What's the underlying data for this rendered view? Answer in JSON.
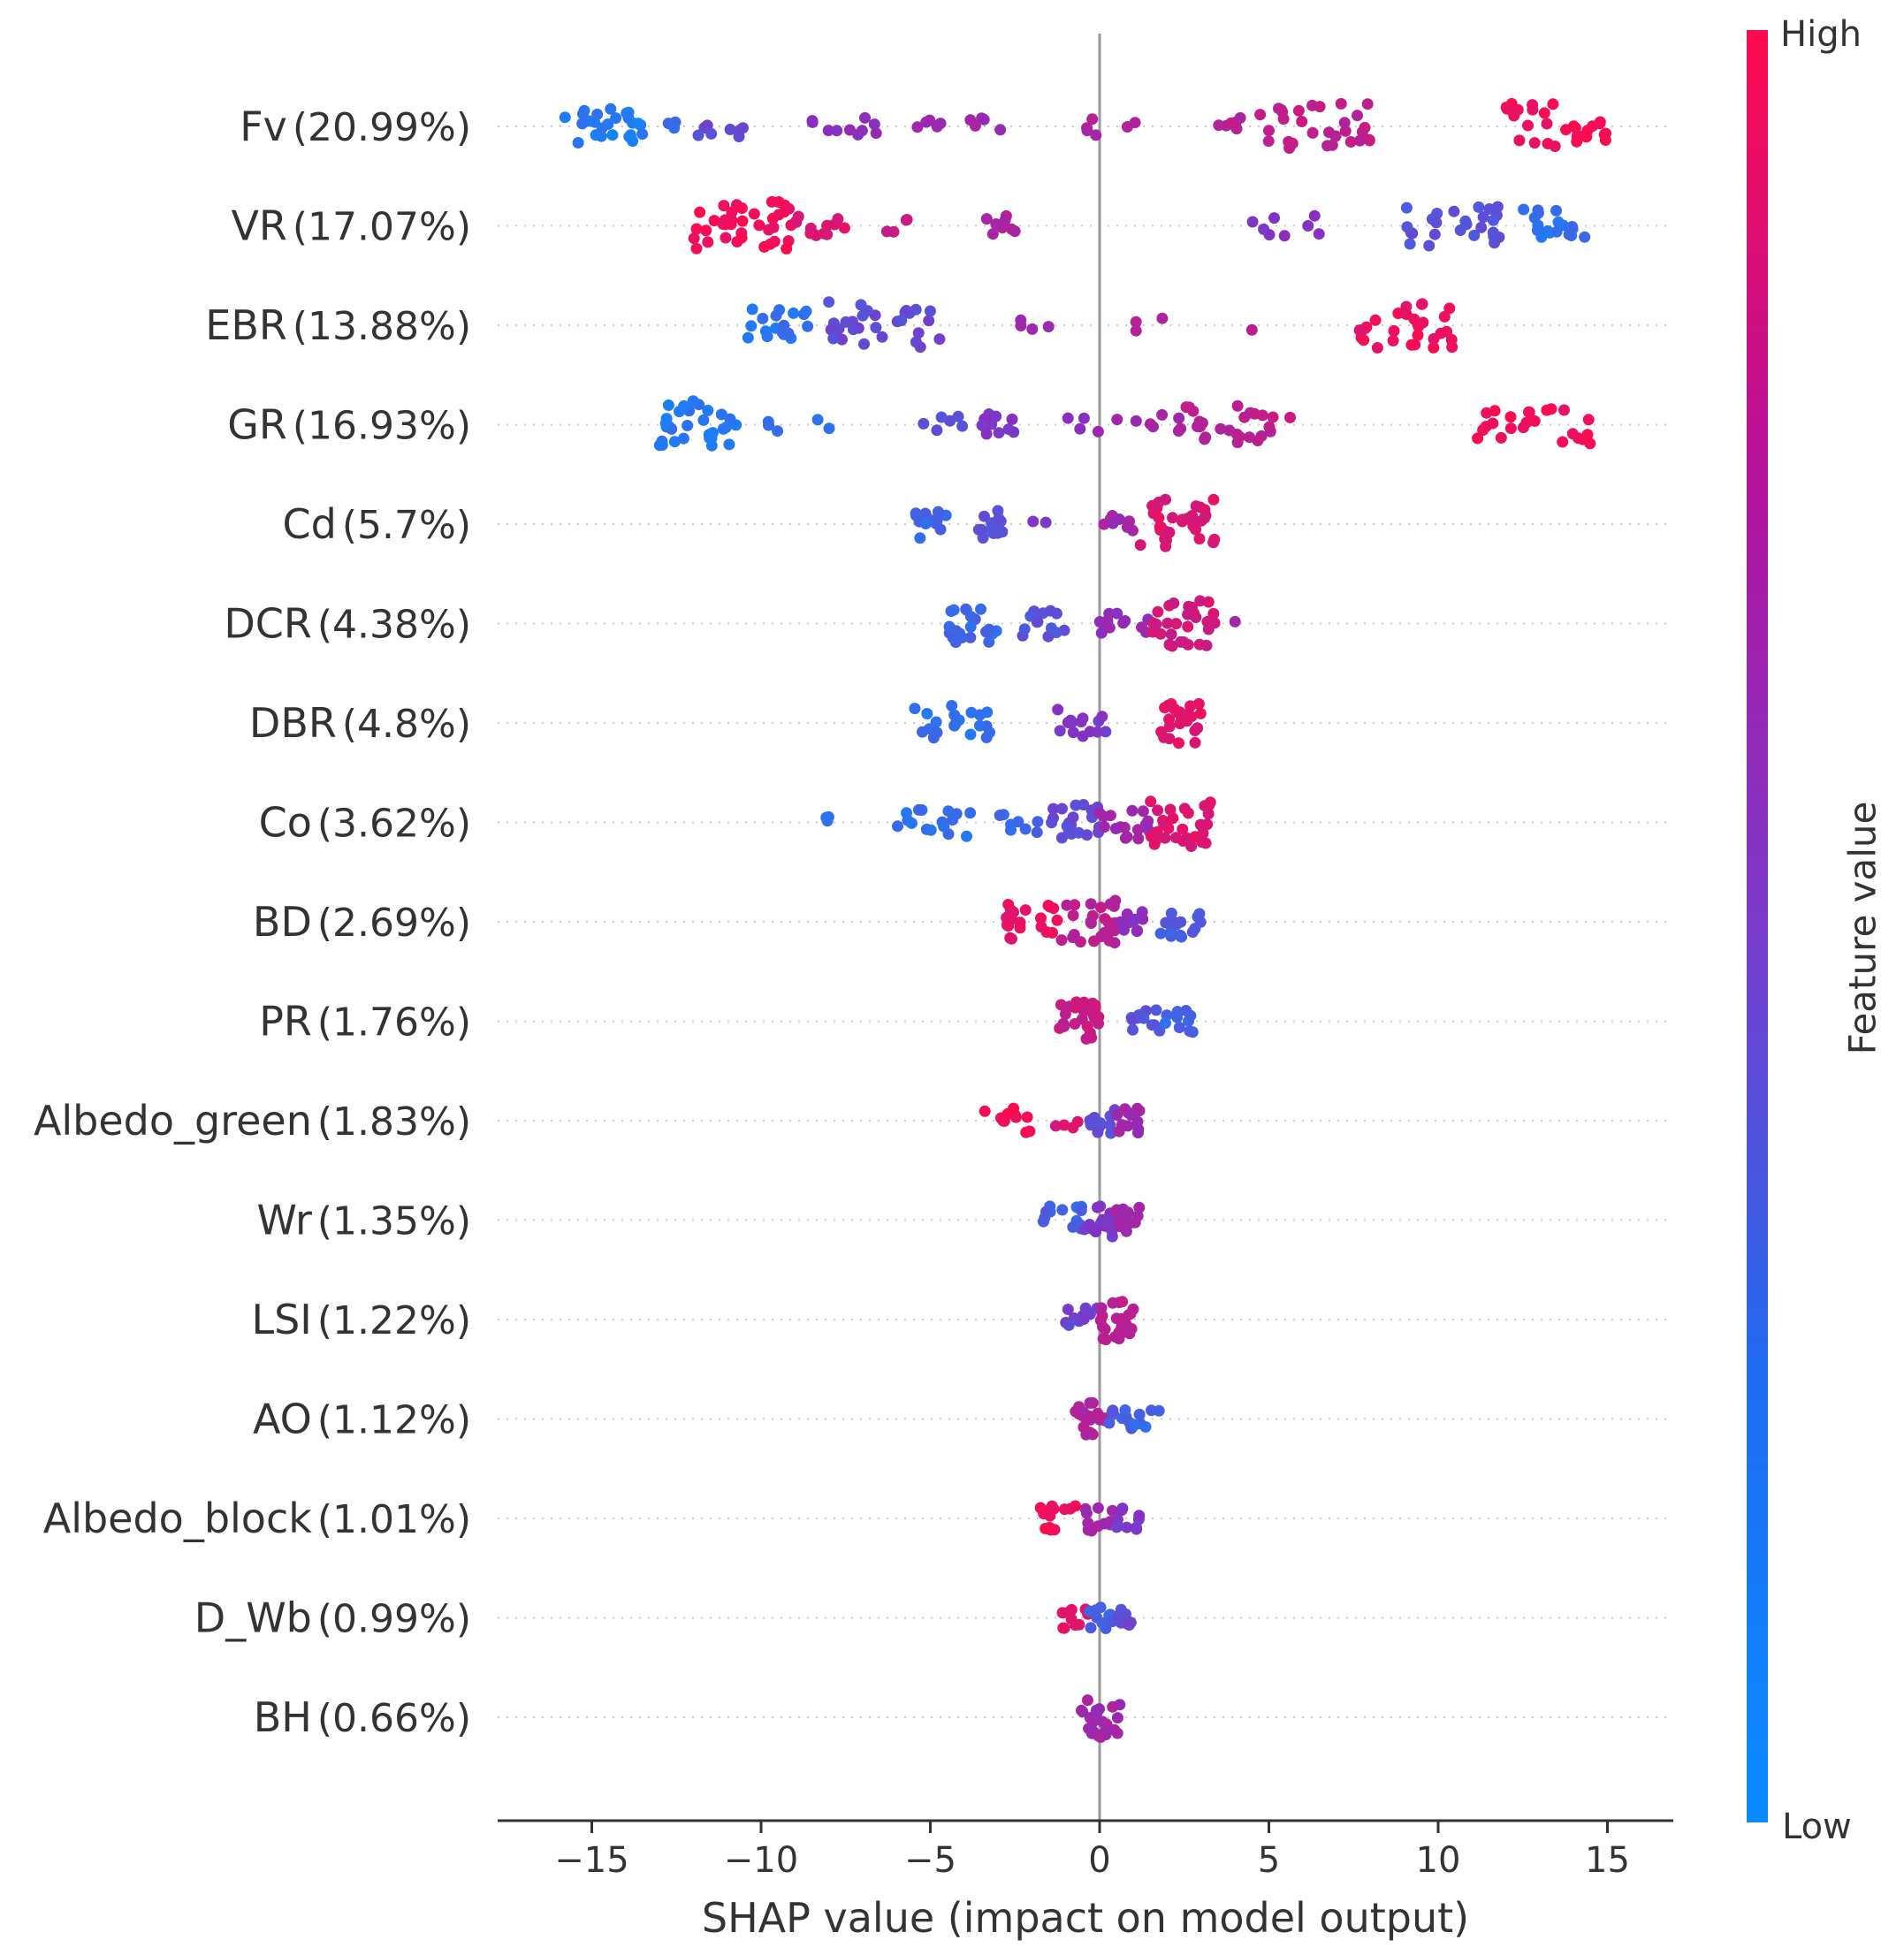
{
  "chart_data": {
    "type": "scatter",
    "subtype": "shap-beeswarm",
    "title": "",
    "xlabel": "SHAP value (impact on model output)",
    "ylabel": "",
    "xlim": [
      -18,
      17
    ],
    "x_ticks": [
      -15,
      -10,
      -5,
      0,
      5,
      10,
      15
    ],
    "x_tick_labels": [
      "−15",
      "−10",
      "−5",
      "0",
      "5",
      "10",
      "15"
    ],
    "features": [
      {
        "name": "Fv",
        "importance": "(20.99%)"
      },
      {
        "name": "VR",
        "importance": "(17.07%)"
      },
      {
        "name": "EBR",
        "importance": "(13.88%)"
      },
      {
        "name": "GR",
        "importance": "(16.93%)"
      },
      {
        "name": "Cd",
        "importance": "(5.7%)"
      },
      {
        "name": "DCR",
        "importance": "(4.38%)"
      },
      {
        "name": "DBR",
        "importance": "(4.8%)"
      },
      {
        "name": "Co",
        "importance": "(3.62%)"
      },
      {
        "name": "BD",
        "importance": "(2.69%)"
      },
      {
        "name": "PR",
        "importance": "(1.76%)"
      },
      {
        "name": "Albedo_green",
        "importance": "(1.83%)"
      },
      {
        "name": "Wr",
        "importance": "(1.35%)"
      },
      {
        "name": "LSI",
        "importance": "(1.22%)"
      },
      {
        "name": "AO",
        "importance": "(1.12%)"
      },
      {
        "name": "Albedo_block",
        "importance": "(1.01%)"
      },
      {
        "name": "D_Wb",
        "importance": "(0.99%)"
      },
      {
        "name": "BH",
        "importance": "(0.66%)"
      }
    ],
    "clusters": [
      [
        [
          -15.8,
          -13.5,
          26,
          0.1
        ],
        [
          -13.2,
          -12.5,
          3,
          0.2
        ],
        [
          -12,
          -10.3,
          8,
          0.35
        ],
        [
          -8.5,
          -6.2,
          10,
          0.5
        ],
        [
          -5.5,
          -4.5,
          5,
          0.55
        ],
        [
          -4,
          -2.5,
          5,
          0.58
        ],
        [
          -1,
          1.5,
          6,
          0.65
        ],
        [
          3,
          4.5,
          6,
          0.68
        ],
        [
          4.6,
          8,
          30,
          0.72
        ],
        [
          12,
          15,
          30,
          0.95
        ]
      ],
      [
        [
          -12,
          -9,
          38,
          0.95
        ],
        [
          -9,
          -7.5,
          12,
          0.85
        ],
        [
          -6.5,
          -5.5,
          4,
          0.75
        ],
        [
          -3.5,
          -2.5,
          8,
          0.65
        ],
        [
          4.5,
          6.5,
          8,
          0.45
        ],
        [
          8.8,
          12,
          26,
          0.3
        ],
        [
          12.5,
          14.5,
          18,
          0.15
        ]
      ],
      [
        [
          -10.5,
          -8.5,
          18,
          0.15
        ],
        [
          -8,
          -4.5,
          30,
          0.35
        ],
        [
          -2.5,
          -1,
          4,
          0.6
        ],
        [
          1,
          2,
          3,
          0.7
        ],
        [
          4.5,
          4.5,
          1,
          0.7
        ],
        [
          7.6,
          10.5,
          30,
          0.92
        ]
      ],
      [
        [
          -13,
          -10.5,
          30,
          0.1
        ],
        [
          -10,
          -9.5,
          3,
          0.12
        ],
        [
          -8.5,
          -7.5,
          2,
          0.15
        ],
        [
          -5.5,
          -4,
          6,
          0.3
        ],
        [
          -3.5,
          -2.5,
          12,
          0.45
        ],
        [
          -1,
          0,
          4,
          0.55
        ],
        [
          0.5,
          2.5,
          8,
          0.62
        ],
        [
          2.5,
          5,
          22,
          0.7
        ],
        [
          5,
          5.8,
          4,
          0.75
        ],
        [
          11,
          14.5,
          24,
          0.95
        ]
      ],
      [
        [
          -5.5,
          -4.5,
          14,
          0.2
        ],
        [
          -3.6,
          -2.8,
          14,
          0.3
        ],
        [
          -2,
          -1.5,
          2,
          0.4
        ],
        [
          0,
          1.2,
          8,
          0.6
        ],
        [
          1.2,
          3.4,
          32,
          0.85
        ]
      ],
      [
        [
          -4.5,
          -3,
          22,
          0.2
        ],
        [
          -2.3,
          -1,
          14,
          0.3
        ],
        [
          0,
          1.5,
          12,
          0.55
        ],
        [
          1.5,
          3.5,
          30,
          0.8
        ],
        [
          4,
          4,
          1,
          0.65
        ]
      ],
      [
        [
          -5.5,
          -3.2,
          20,
          0.15
        ],
        [
          -1.3,
          0.3,
          14,
          0.45
        ],
        [
          1.8,
          3,
          24,
          0.88
        ]
      ],
      [
        [
          -8.5,
          -7.8,
          3,
          0.1
        ],
        [
          -6,
          -3.5,
          16,
          0.15
        ],
        [
          -3,
          -1.5,
          8,
          0.2
        ],
        [
          -1.5,
          0,
          20,
          0.35
        ],
        [
          0,
          1.5,
          18,
          0.6
        ],
        [
          1.5,
          3.3,
          30,
          0.85
        ]
      ],
      [
        [
          -2.8,
          -1.2,
          20,
          0.9
        ],
        [
          -1.2,
          0.5,
          26,
          0.7
        ],
        [
          0.5,
          1.6,
          10,
          0.5
        ],
        [
          1.8,
          3,
          16,
          0.25
        ]
      ],
      [
        [
          -1.3,
          0,
          24,
          0.75
        ],
        [
          0.5,
          1.8,
          12,
          0.3
        ],
        [
          1.8,
          2.8,
          10,
          0.2
        ]
      ],
      [
        [
          -3.5,
          -2,
          12,
          0.95
        ],
        [
          -1.5,
          -0.5,
          4,
          0.85
        ],
        [
          -0.3,
          0.5,
          12,
          0.35
        ],
        [
          0.5,
          1.2,
          12,
          0.6
        ]
      ],
      [
        [
          -1.8,
          -0.5,
          14,
          0.2
        ],
        [
          -0.5,
          0.5,
          18,
          0.45
        ],
        [
          0.5,
          1.2,
          12,
          0.6
        ]
      ],
      [
        [
          -1,
          0,
          10,
          0.4
        ],
        [
          0,
          1,
          24,
          0.7
        ]
      ],
      [
        [
          -0.8,
          0.2,
          18,
          0.65
        ],
        [
          0.2,
          1,
          10,
          0.25
        ],
        [
          1,
          1.8,
          6,
          0.2
        ]
      ],
      [
        [
          -1.8,
          -0.6,
          14,
          0.95
        ],
        [
          -0.5,
          0.4,
          12,
          0.6
        ],
        [
          0.4,
          1.2,
          10,
          0.45
        ]
      ],
      [
        [
          -1.2,
          -0.2,
          10,
          0.9
        ],
        [
          -0.3,
          0.4,
          10,
          0.25
        ],
        [
          0.4,
          1,
          8,
          0.35
        ]
      ],
      [
        [
          -0.6,
          0.6,
          24,
          0.6
        ]
      ]
    ],
    "colorbar": {
      "title": "Feature value",
      "high_label": "High",
      "low_label": "Low",
      "low_color": "#1e88e5",
      "mid_color": "#a5149e",
      "high_color": "#ff0051"
    }
  }
}
